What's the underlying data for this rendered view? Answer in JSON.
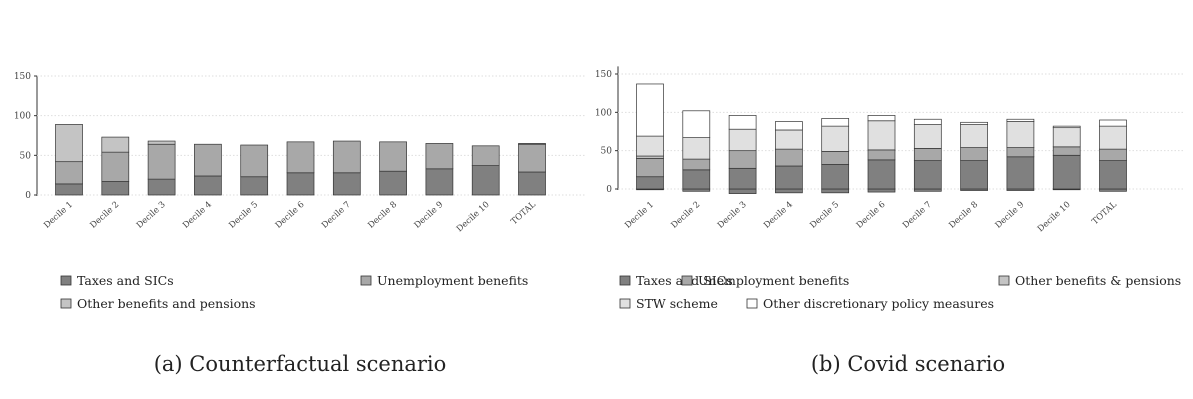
{
  "colors": {
    "Taxes and SICs": "#808080",
    "Unemployment benefits": "#a8a8a8",
    "Other benefits and pensions": "#c4c4c4",
    "Other benefits & pensions": "#c4c4c4",
    "STW scheme": "#e0e0e0",
    "Other discretionary policy measures": "#ffffff"
  },
  "chart_data": [
    {
      "type": "bar",
      "stacked": true,
      "caption": "(a) Counterfactual scenario",
      "categories": [
        "Decile 1",
        "Decile 2",
        "Decile 3",
        "Decile 4",
        "Decile 5",
        "Decile 6",
        "Decile 7",
        "Decile 8",
        "Decile 9",
        "Decile 10",
        "TOTAL"
      ],
      "series": [
        {
          "name": "Taxes and SICs",
          "values": [
            14,
            17,
            20,
            24,
            23,
            28,
            28,
            30,
            33,
            37,
            29
          ]
        },
        {
          "name": "Unemployment benefits",
          "values": [
            28,
            37,
            44,
            40,
            40,
            39,
            40,
            37,
            32,
            25,
            35
          ]
        },
        {
          "name": "Other benefits and pensions",
          "values": [
            47,
            19,
            4,
            0,
            0,
            0,
            0,
            0,
            0,
            0,
            1
          ]
        }
      ],
      "yticks": [
        0,
        50,
        100,
        150
      ],
      "ylim": [
        0,
        150
      ],
      "grid": true,
      "legend": [
        "Taxes and SICs",
        "Unemployment benefits",
        "Other benefits and pensions"
      ],
      "legend_position": "bottom"
    },
    {
      "type": "bar",
      "stacked": true,
      "caption": "(b) Covid scenario",
      "categories": [
        "Decile 1",
        "Decile 2",
        "Decile 3",
        "Decile 4",
        "Decile 5",
        "Decile 6",
        "Decile 7",
        "Decile 8",
        "Decile 9",
        "Decile 10",
        "TOTAL"
      ],
      "series": [
        {
          "name": "Taxes and SICs",
          "values": [
            16,
            25,
            27,
            30,
            32,
            38,
            37,
            37,
            42,
            44,
            37
          ],
          "negative": [
            -1,
            -3,
            -6,
            -5,
            -5,
            -4,
            -3,
            -2,
            -2,
            -1,
            -3
          ]
        },
        {
          "name": "Unemployment benefits",
          "values": [
            24,
            14,
            23,
            22,
            17,
            13,
            16,
            17,
            12,
            11,
            15
          ]
        },
        {
          "name": "Other benefits & pensions",
          "values": [
            3,
            0,
            0,
            0,
            0,
            0,
            0,
            0,
            0,
            0,
            0
          ]
        },
        {
          "name": "STW scheme",
          "values": [
            26,
            28,
            28,
            25,
            33,
            38,
            31,
            30,
            34,
            25,
            30
          ]
        },
        {
          "name": "Other discretionary policy measures",
          "values": [
            68,
            35,
            18,
            11,
            10,
            7,
            7,
            3,
            3,
            2,
            8
          ]
        }
      ],
      "yticks": [
        0,
        50,
        100,
        150
      ],
      "ylim": [
        -6,
        160
      ],
      "grid": true,
      "legend": [
        "Taxes and SICs",
        "Unemployment benefits",
        "Other benefits & pensions",
        "STW scheme",
        "Other discretionary policy measures"
      ],
      "legend_position": "bottom"
    }
  ]
}
